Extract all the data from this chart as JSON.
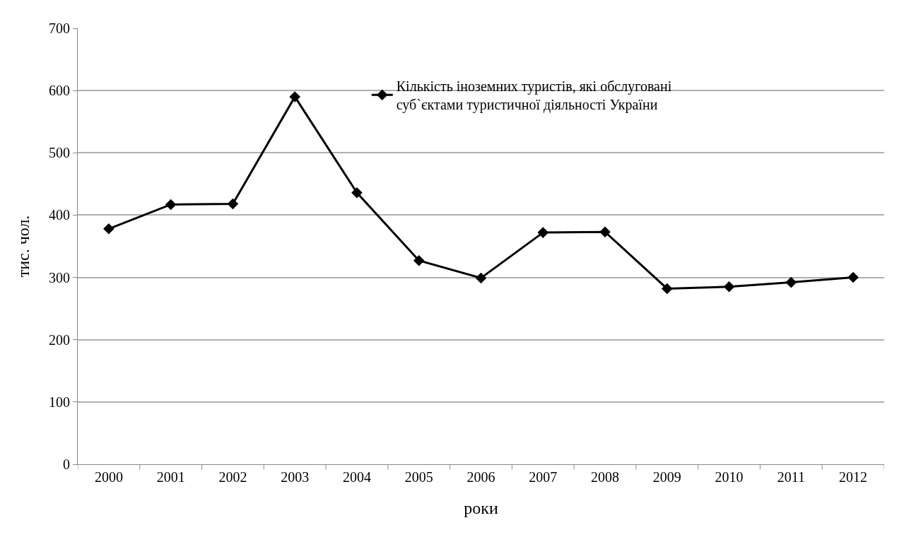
{
  "chart_data": {
    "type": "line",
    "xlabel": "роки",
    "ylabel": "тис. чол.",
    "categories": [
      "2000",
      "2001",
      "2002",
      "2003",
      "2004",
      "2005",
      "2006",
      "2007",
      "2008",
      "2009",
      "2010",
      "2011",
      "2012"
    ],
    "series": [
      {
        "name": "Кількість іноземних туристів, які обслуговані\nсуб`єктами туристичної діяльності України",
        "color": "#000000",
        "values": [
          378,
          417,
          418,
          590,
          436,
          327,
          299,
          372,
          373,
          282,
          285,
          292,
          300
        ]
      }
    ],
    "ylim": [
      0,
      700
    ],
    "yticks": [
      0,
      100,
      200,
      300,
      400,
      500,
      600,
      700
    ],
    "grid": "y",
    "legend": "top right",
    "marker": "diamond",
    "line_style": "solid"
  }
}
